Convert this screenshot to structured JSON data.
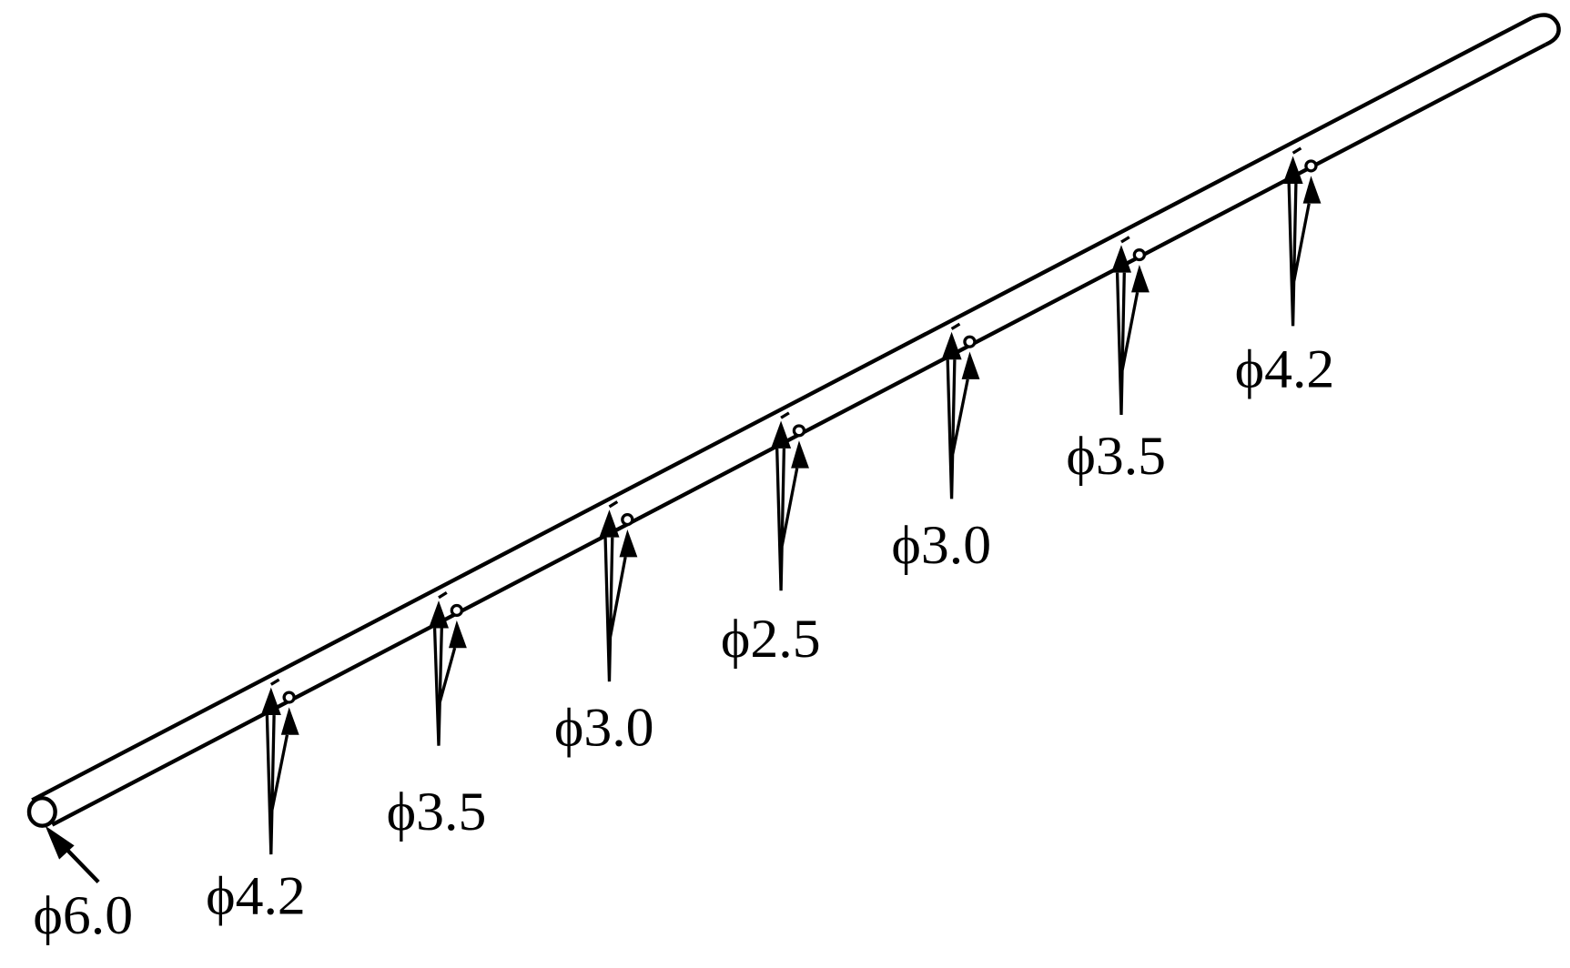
{
  "diagram": {
    "colors": {
      "line": "#000000",
      "background": "#ffffff"
    },
    "inlet": {
      "label": "ϕ6.0",
      "icon": "arrow-icon"
    },
    "emitters": [
      {
        "label": "ϕ4.2"
      },
      {
        "label": "ϕ3.5"
      },
      {
        "label": "ϕ3.0"
      },
      {
        "label": "ϕ2.5"
      },
      {
        "label": "ϕ3.0"
      },
      {
        "label": "ϕ3.5"
      },
      {
        "label": "ϕ4.2"
      }
    ]
  }
}
